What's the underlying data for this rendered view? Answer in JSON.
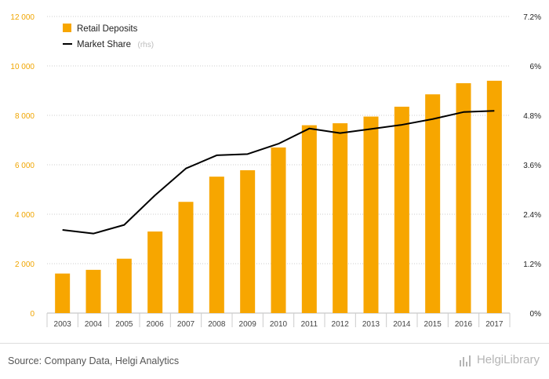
{
  "chart_data": {
    "type": "bar+line",
    "categories": [
      "2003",
      "2004",
      "2005",
      "2006",
      "2007",
      "2008",
      "2009",
      "2010",
      "2011",
      "2012",
      "2013",
      "2014",
      "2015",
      "2016",
      "2017"
    ],
    "series": [
      {
        "name": "Retail Deposits",
        "type": "bar",
        "axis": "left",
        "color": "#f7a600",
        "values": [
          1600,
          1750,
          2200,
          3300,
          4500,
          5520,
          5780,
          6700,
          7600,
          7680,
          7950,
          8350,
          8850,
          9300,
          9400
        ]
      },
      {
        "name": "Market Share",
        "name_note": "(rhs)",
        "type": "line",
        "axis": "right",
        "color": "#000000",
        "values": [
          2.02,
          1.93,
          2.14,
          2.86,
          3.51,
          3.83,
          3.86,
          4.11,
          4.48,
          4.37,
          4.47,
          4.57,
          4.71,
          4.88,
          4.91
        ]
      }
    ],
    "y_left": {
      "min": 0,
      "max": 12000,
      "ticks": [
        0,
        2000,
        4000,
        6000,
        8000,
        10000,
        12000
      ],
      "tick_labels": [
        "0",
        "2 000",
        "4 000",
        "6 000",
        "8 000",
        "10 000",
        "12 000"
      ],
      "color": "#f0a500"
    },
    "y_right": {
      "min": 0,
      "max": 7.2,
      "ticks": [
        0,
        1.2,
        2.4,
        3.6,
        4.8,
        6,
        7.2
      ],
      "tick_labels": [
        "0%",
        "1.2%",
        "2.4%",
        "3.6%",
        "4.8%",
        "6%",
        "7.2%"
      ]
    },
    "grid": "horizontal-dotted",
    "legend_position": "top-left"
  },
  "footer": {
    "source": "Source: Company Data, Helgi Analytics",
    "brand": "HelgiLibrary"
  }
}
